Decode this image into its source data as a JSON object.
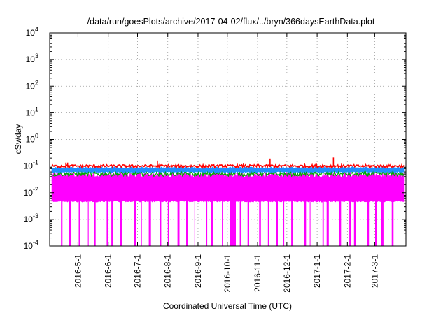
{
  "chart_data": {
    "type": "line",
    "title": "/data/run/goesPlots/archive/2017-04-02/flux/../bryn/366daysEarthData.plot",
    "xlabel": "Coordinated Universal Time (UTC)",
    "ylabel": "cSv/day",
    "y_scale": "log",
    "ylim": [
      0.0001,
      10000
    ],
    "xlim": [
      "2016-04-02",
      "2017-04-02"
    ],
    "grid": true,
    "y_ticks": [
      {
        "base": "10",
        "exp": "-4",
        "value": 0.0001
      },
      {
        "base": "10",
        "exp": "-3",
        "value": 0.001
      },
      {
        "base": "10",
        "exp": "-2",
        "value": 0.01
      },
      {
        "base": "10",
        "exp": "-1",
        "value": 0.1
      },
      {
        "base": "10",
        "exp": "0",
        "value": 1
      },
      {
        "base": "10",
        "exp": "1",
        "value": 10
      },
      {
        "base": "10",
        "exp": "2",
        "value": 100
      },
      {
        "base": "10",
        "exp": "3",
        "value": 1000
      },
      {
        "base": "10",
        "exp": "4",
        "value": 10000
      }
    ],
    "x_ticks": [
      {
        "label": "2016-5-1",
        "date": "2016-05-01"
      },
      {
        "label": "2016-6-1",
        "date": "2016-06-01"
      },
      {
        "label": "2016-7-1",
        "date": "2016-07-01"
      },
      {
        "label": "2016-8-1",
        "date": "2016-08-01"
      },
      {
        "label": "2016-9-1",
        "date": "2016-09-01"
      },
      {
        "label": "2016-10-1",
        "date": "2016-10-01"
      },
      {
        "label": "2016-11-1",
        "date": "2016-11-01"
      },
      {
        "label": "2016-12-1",
        "date": "2016-12-01"
      },
      {
        "label": "2017-1-1",
        "date": "2017-01-01"
      },
      {
        "label": "2017-2-1",
        "date": "2017-02-01"
      },
      {
        "label": "2017-3-1",
        "date": "2017-03-01"
      }
    ],
    "series": [
      {
        "color": "#ff0000",
        "typical_value": 0.1,
        "min_value": 0.08,
        "max_value": 0.17
      },
      {
        "color": "#1e90ff",
        "typical_value": 0.075,
        "min_value": 0.05,
        "max_value": 0.095
      },
      {
        "color": "#00aa00",
        "typical_value": 0.05,
        "min_value": 0.035,
        "max_value": 0.06
      },
      {
        "color": "#ff00ff",
        "typical_value": 0.02,
        "min_value": 0.0001,
        "max_value": 0.06,
        "floor_value": 0.005
      }
    ]
  }
}
